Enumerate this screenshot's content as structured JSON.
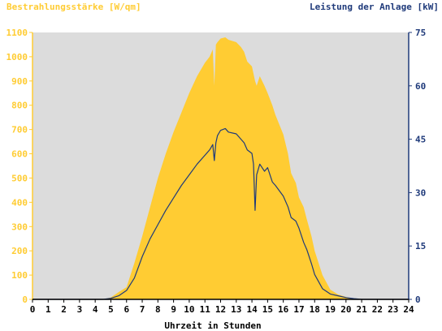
{
  "chart_data": {
    "type": "area",
    "left_axis_title": "Bestrahlungsstärke [W/qm]",
    "right_axis_title": "Leistung der Anlage [kW]",
    "xlabel": "Uhrzeit in Stunden",
    "xlim": [
      0,
      24
    ],
    "x_ticks": [
      "0",
      "1",
      "2",
      "3",
      "4",
      "5",
      "6",
      "7",
      "8",
      "9",
      "10",
      "11",
      "12",
      "13",
      "14",
      "15",
      "16",
      "17",
      "18",
      "19",
      "20",
      "21",
      "22",
      "23",
      "24"
    ],
    "ylim_left": [
      0,
      1100
    ],
    "y_ticks_left": [
      "0",
      "100",
      "200",
      "300",
      "400",
      "500",
      "600",
      "700",
      "800",
      "900",
      "1000",
      "1100"
    ],
    "ylim_right": [
      0,
      75
    ],
    "y_ticks_right": [
      "0",
      "15",
      "30",
      "45",
      "60",
      "75"
    ],
    "grid": false,
    "colors": {
      "irradiance": "#FFCC33",
      "power": "#1F3A7A",
      "plot_bg": "#DCDCDC",
      "left_axis": "#FFCC33",
      "right_axis": "#1F3A7A"
    },
    "series": [
      {
        "name": "Bestrahlungsstärke",
        "axis": "left",
        "style": "area",
        "points": [
          [
            0,
            0
          ],
          [
            4.5,
            0
          ],
          [
            5,
            8
          ],
          [
            5.5,
            30
          ],
          [
            6,
            50
          ],
          [
            6.5,
            150
          ],
          [
            7,
            260
          ],
          [
            7.5,
            380
          ],
          [
            8,
            500
          ],
          [
            8.5,
            600
          ],
          [
            9,
            690
          ],
          [
            9.5,
            770
          ],
          [
            10,
            850
          ],
          [
            10.5,
            920
          ],
          [
            11,
            975
          ],
          [
            11.3,
            1000
          ],
          [
            11.5,
            1030
          ],
          [
            11.6,
            880
          ],
          [
            11.7,
            1050
          ],
          [
            11.8,
            1060
          ],
          [
            12,
            1075
          ],
          [
            12.3,
            1080
          ],
          [
            12.5,
            1070
          ],
          [
            13,
            1060
          ],
          [
            13.3,
            1040
          ],
          [
            13.5,
            1020
          ],
          [
            13.7,
            980
          ],
          [
            14,
            960
          ],
          [
            14.2,
            900
          ],
          [
            14.3,
            880
          ],
          [
            14.5,
            920
          ],
          [
            14.8,
            880
          ],
          [
            15,
            850
          ],
          [
            15.3,
            800
          ],
          [
            15.5,
            760
          ],
          [
            16,
            680
          ],
          [
            16.3,
            600
          ],
          [
            16.5,
            520
          ],
          [
            16.8,
            480
          ],
          [
            17,
            420
          ],
          [
            17.3,
            380
          ],
          [
            17.5,
            330
          ],
          [
            17.8,
            260
          ],
          [
            18,
            200
          ],
          [
            18.5,
            100
          ],
          [
            19,
            40
          ],
          [
            19.5,
            20
          ],
          [
            20,
            10
          ],
          [
            20.5,
            2
          ],
          [
            21,
            0
          ],
          [
            24,
            0
          ]
        ]
      },
      {
        "name": "Leistung der Anlage",
        "axis": "right",
        "style": "line",
        "points": [
          [
            0,
            0
          ],
          [
            4.5,
            0
          ],
          [
            5,
            0.3
          ],
          [
            5.5,
            1
          ],
          [
            6,
            2.5
          ],
          [
            6.5,
            6
          ],
          [
            7,
            12
          ],
          [
            7.5,
            17
          ],
          [
            8,
            21
          ],
          [
            8.5,
            25
          ],
          [
            9,
            28.5
          ],
          [
            9.5,
            32
          ],
          [
            10,
            35
          ],
          [
            10.5,
            38
          ],
          [
            11,
            40.5
          ],
          [
            11.3,
            42
          ],
          [
            11.5,
            43.5
          ],
          [
            11.6,
            39
          ],
          [
            11.7,
            44
          ],
          [
            11.8,
            46
          ],
          [
            12,
            47.5
          ],
          [
            12.3,
            48
          ],
          [
            12.5,
            47
          ],
          [
            13,
            46.5
          ],
          [
            13.3,
            45
          ],
          [
            13.5,
            44
          ],
          [
            13.7,
            42
          ],
          [
            14,
            41
          ],
          [
            14.1,
            38
          ],
          [
            14.2,
            25
          ],
          [
            14.3,
            35
          ],
          [
            14.5,
            38
          ],
          [
            14.8,
            36
          ],
          [
            15,
            37
          ],
          [
            15.3,
            33
          ],
          [
            15.5,
            32
          ],
          [
            16,
            29
          ],
          [
            16.3,
            26
          ],
          [
            16.5,
            23
          ],
          [
            16.8,
            22
          ],
          [
            17,
            20
          ],
          [
            17.3,
            16
          ],
          [
            17.5,
            14
          ],
          [
            17.8,
            10
          ],
          [
            18,
            7
          ],
          [
            18.5,
            3
          ],
          [
            19,
            1.5
          ],
          [
            19.5,
            1
          ],
          [
            20,
            0.5
          ],
          [
            20.5,
            0.2
          ],
          [
            21,
            0
          ],
          [
            24,
            0
          ]
        ]
      }
    ]
  }
}
